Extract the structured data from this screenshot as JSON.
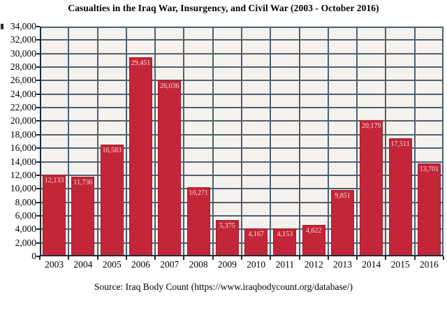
{
  "page": {
    "title": "Casualties in the Iraq War, Insurgency, and Civil War (2003 - October 2016)",
    "source_caption": "Source: Iraq Body Count (https://www.iraqbodycount.org/database/)"
  },
  "chart_data": {
    "type": "bar",
    "title": "Casualties in the Iraq War, Insurgency, and Civil War (2003 - October 2016)",
    "xlabel": "",
    "ylabel": "",
    "categories": [
      "2003",
      "2004",
      "2005",
      "2006",
      "2007",
      "2008",
      "2009",
      "2010",
      "2011",
      "2012",
      "2013",
      "2014",
      "2015",
      "2016"
    ],
    "values": [
      12133,
      11736,
      16583,
      29451,
      26036,
      10271,
      5375,
      4167,
      4153,
      4622,
      9851,
      20179,
      17511,
      13701
    ],
    "value_labels": [
      "12,133",
      "11,736",
      "16,583",
      "29,451",
      "26,036",
      "10,271",
      "5,375",
      "4,167",
      "4,153",
      "4,622",
      "9,851",
      "20,179",
      "17,511",
      "13,701"
    ],
    "ylim": [
      0,
      34000
    ],
    "ytick_step": 2000,
    "ytick_labels": [
      "0",
      "2,000",
      "4,000",
      "6,000",
      "8,000",
      "10,000",
      "12,000",
      "14,000",
      "16,000",
      "18,000",
      "20,000",
      "22,000",
      "24,000",
      "26,000",
      "28,000",
      "30,000",
      "32,000",
      "34,000"
    ],
    "grid": true,
    "legend": "none",
    "annotation": "Source: Iraq Body Count (https://www.iraqbodycount.org/database/)",
    "colors": {
      "bar": "#c32638",
      "bar_border": "#a31b2c",
      "bar_label_text": "#f6ddd8",
      "gridline": "#4d6072",
      "axis": "#1c2b38",
      "plot_background": "#f5f2ee",
      "page_background": "#ffffff",
      "text": "#000000"
    }
  }
}
